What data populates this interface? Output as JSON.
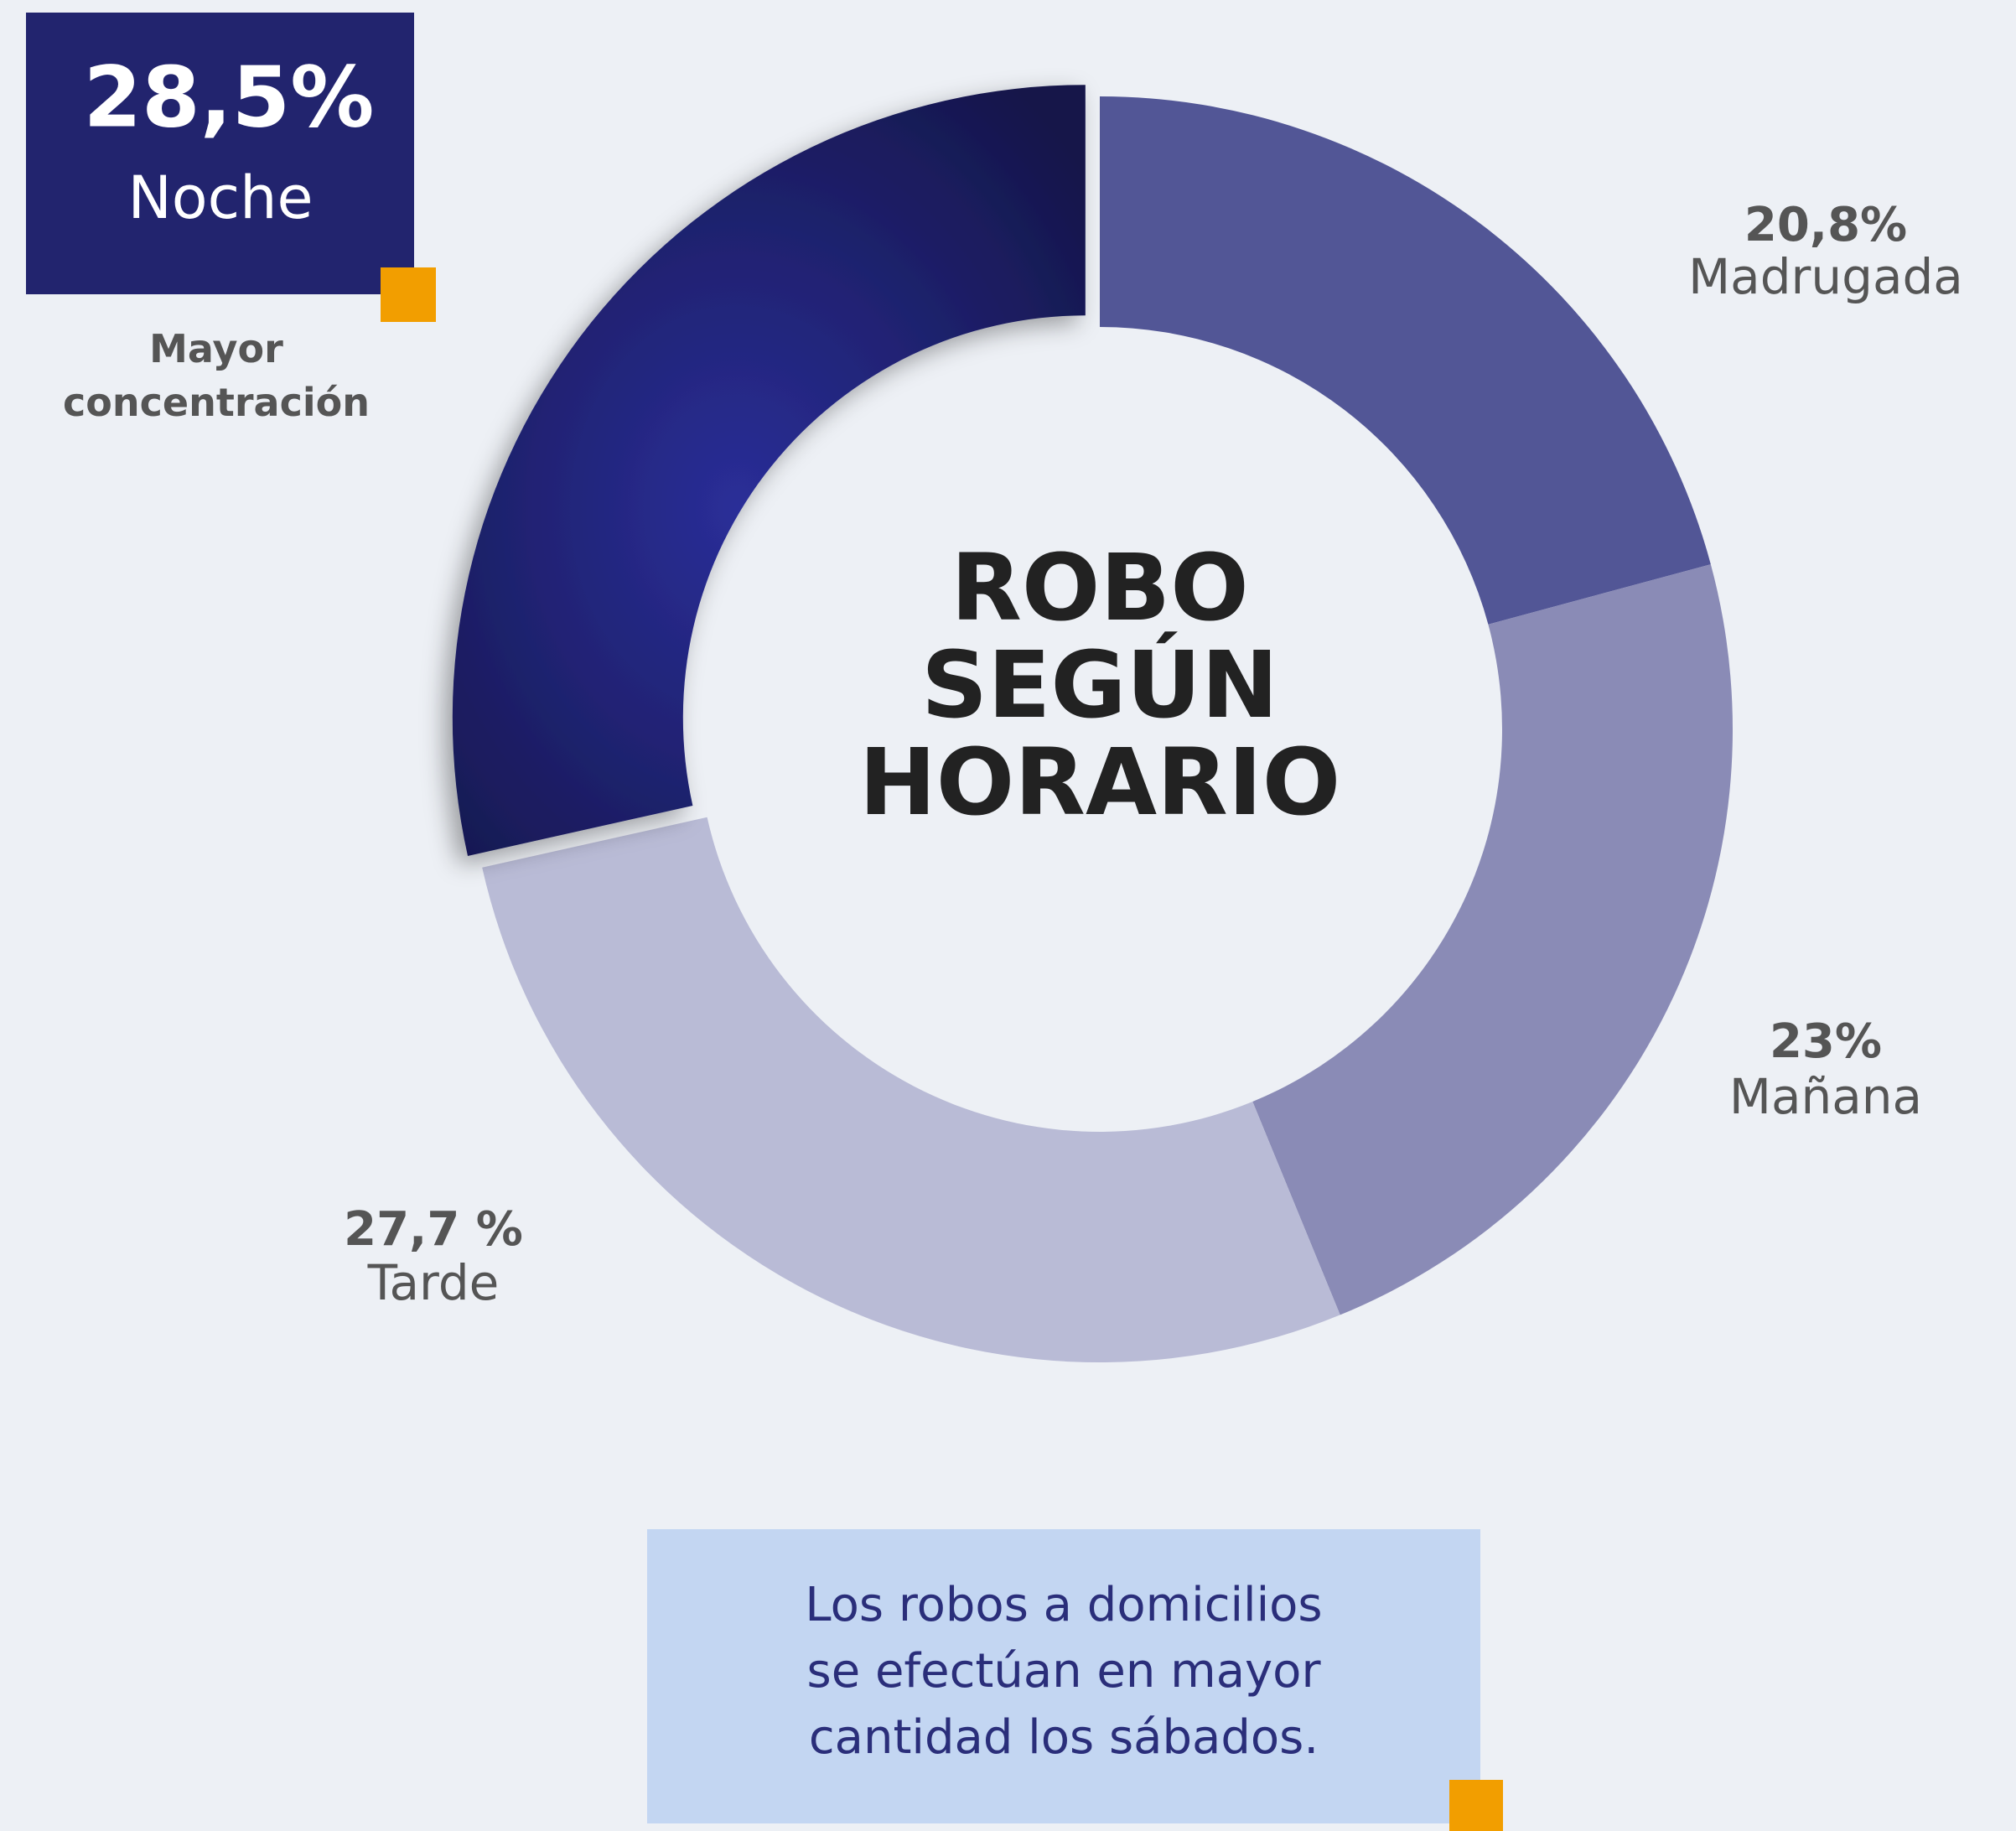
{
  "chart_data": {
    "type": "donut",
    "title": "ROBO SEGÚN HORARIO",
    "categories": [
      "Madrugada",
      "Mañana",
      "Tarde",
      "Noche"
    ],
    "values": [
      20.8,
      23,
      27.7,
      28.5
    ],
    "value_labels": [
      "20,8%",
      "23%",
      "27,7 %",
      "28,5%"
    ],
    "colors": [
      "#525696",
      "#8a8bb6",
      "#b9bbd6",
      "#1c1d5e"
    ],
    "annotation": "Mayor concentración",
    "note": "Los robos a domicilios se efectúan en mayor cantidad los sábados."
  }
}
